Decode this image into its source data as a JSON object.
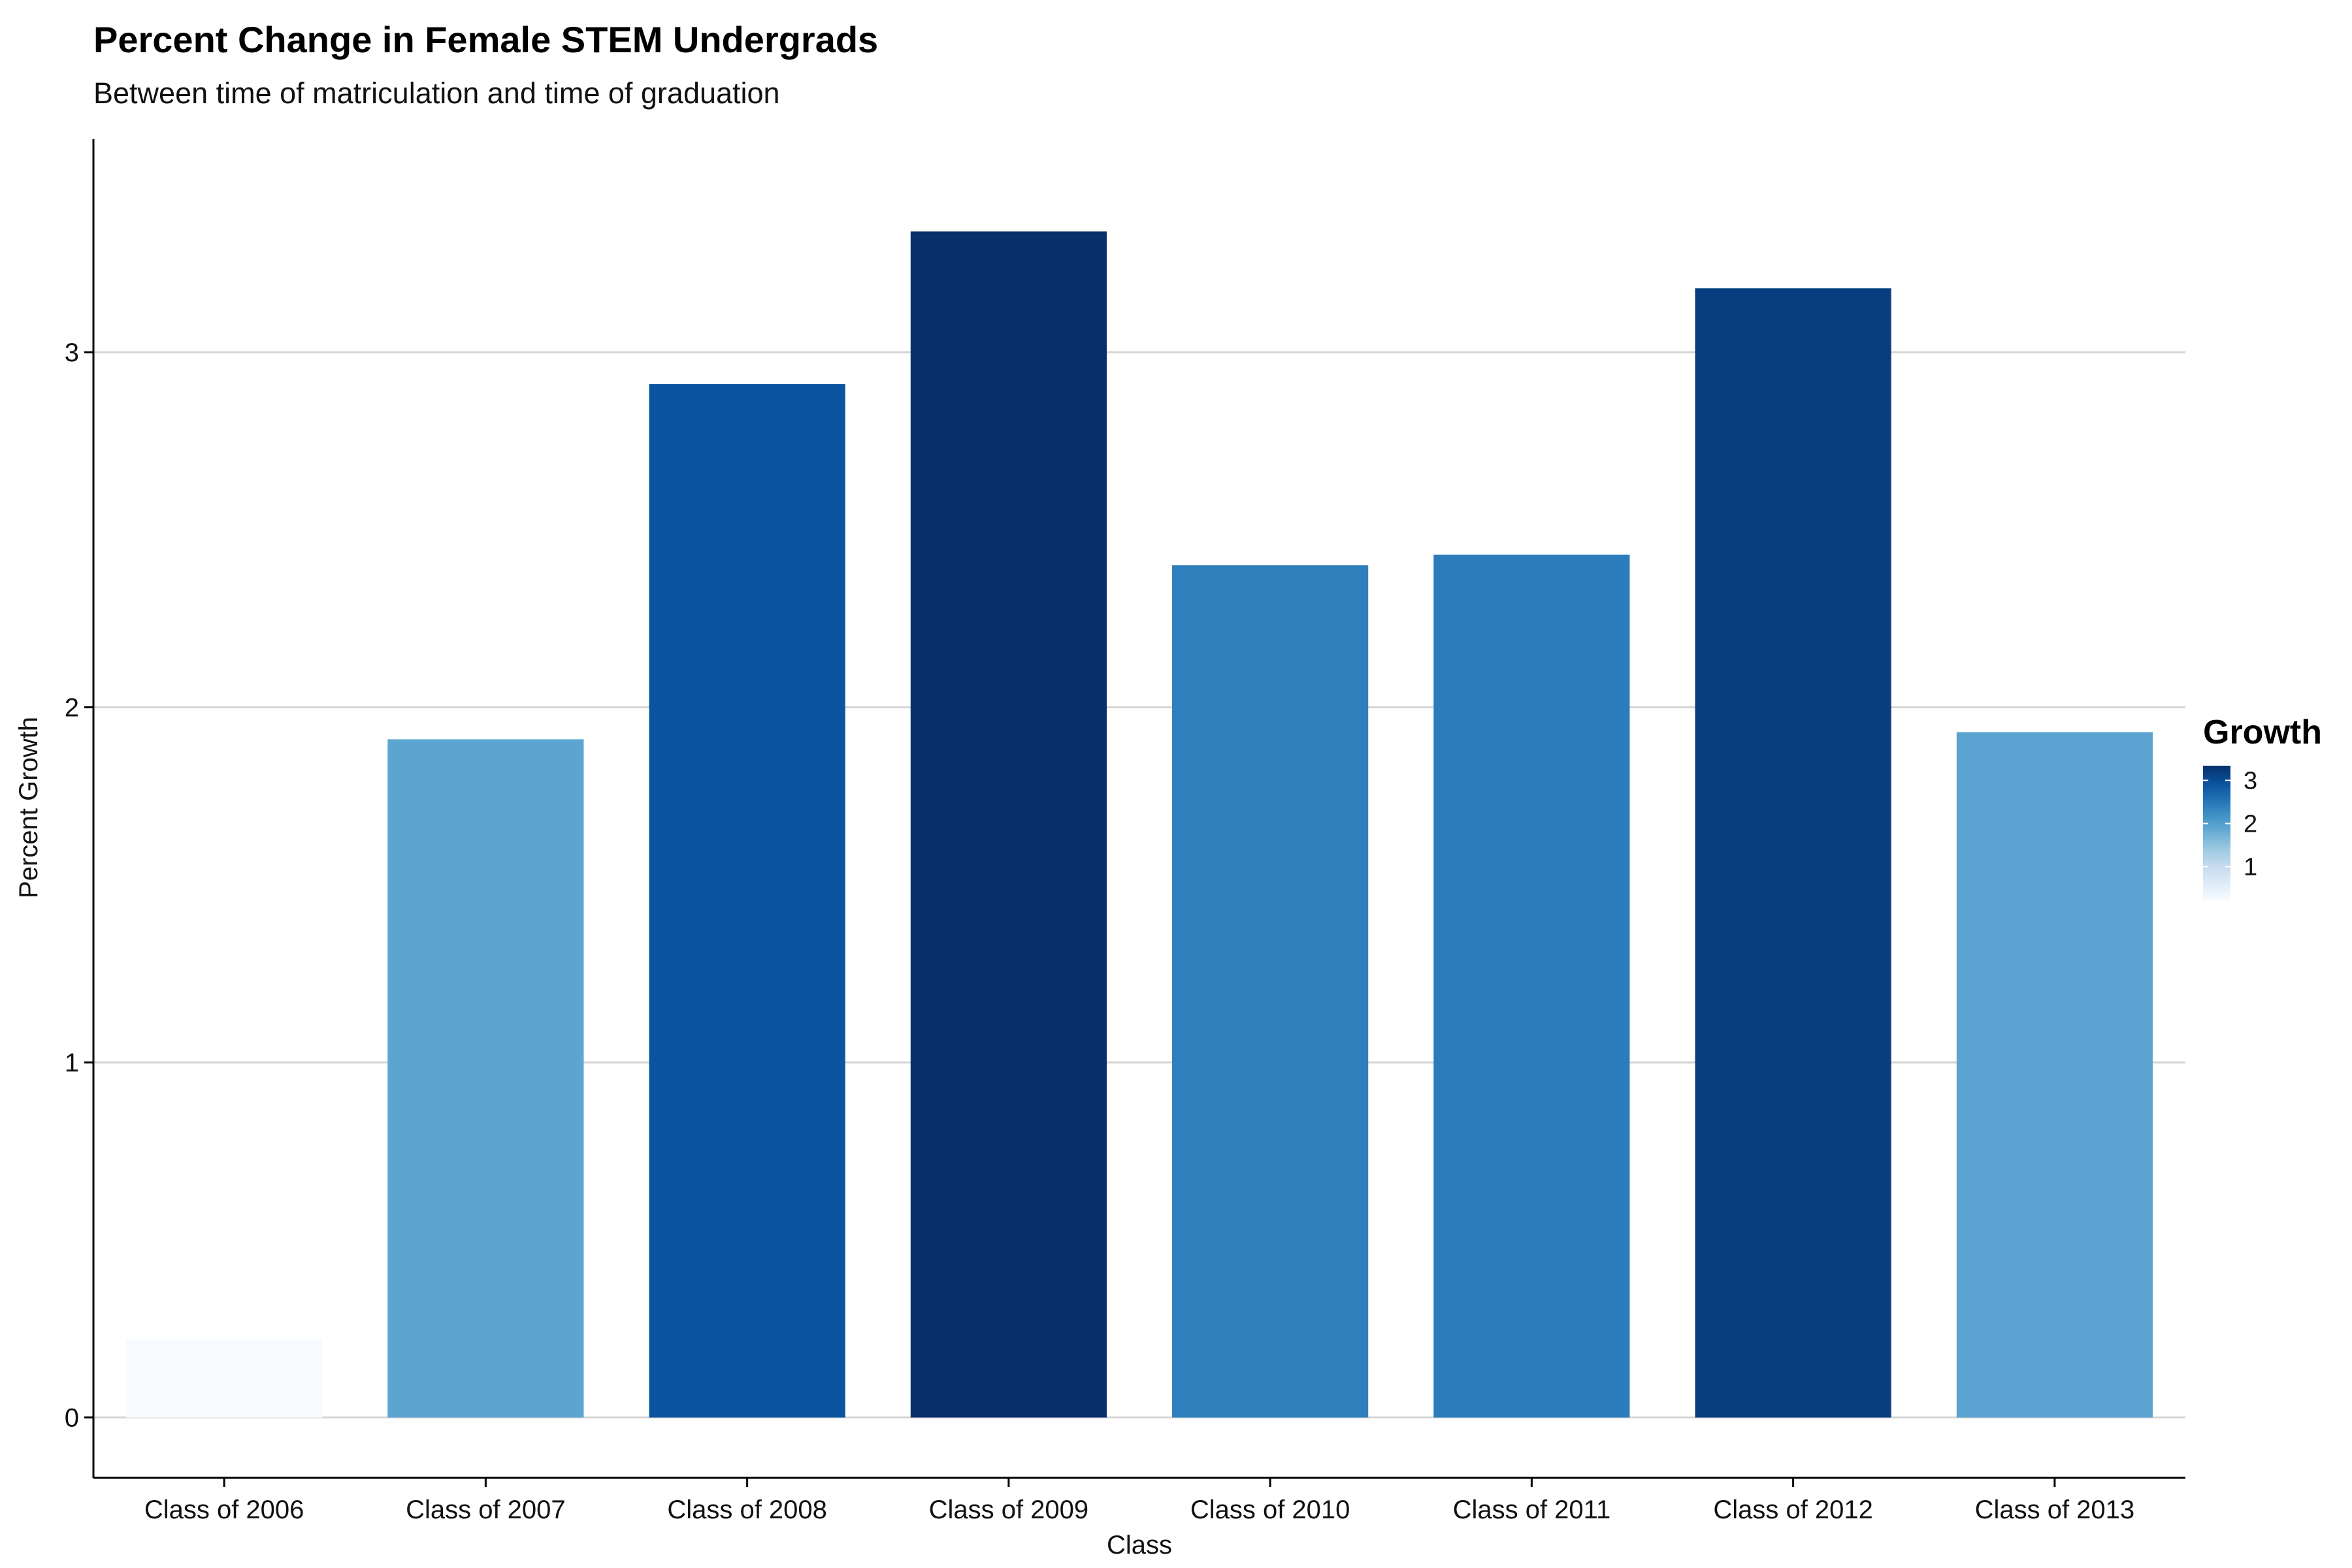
{
  "chart_data": {
    "type": "bar",
    "title": "Percent Change in Female STEM Undergrads",
    "subtitle": "Between time of matriculation and time of graduation",
    "xlabel": "Class",
    "ylabel": "Percent Growth",
    "categories": [
      "Class of 2006",
      "Class of 2007",
      "Class of 2008",
      "Class of 2009",
      "Class of 2010",
      "Class of 2011",
      "Class of 2012",
      "Class of 2013"
    ],
    "values": [
      0.22,
      1.91,
      2.91,
      3.34,
      2.4,
      2.43,
      3.18,
      1.93
    ],
    "ylim": [
      -0.17,
      3.6
    ],
    "yticks": [
      0,
      1,
      2,
      3
    ],
    "grid": "horizontal",
    "legend": {
      "title": "Growth",
      "placement": "right",
      "type": "colorbar",
      "ticks": [
        1,
        2,
        3
      ],
      "range": [
        0.22,
        3.34
      ],
      "colors": [
        "#f7fbff",
        "#deebf7",
        "#c6dbef",
        "#9ecae1",
        "#6baed6",
        "#4292c6",
        "#2171b5",
        "#08519c",
        "#08306b"
      ]
    }
  }
}
